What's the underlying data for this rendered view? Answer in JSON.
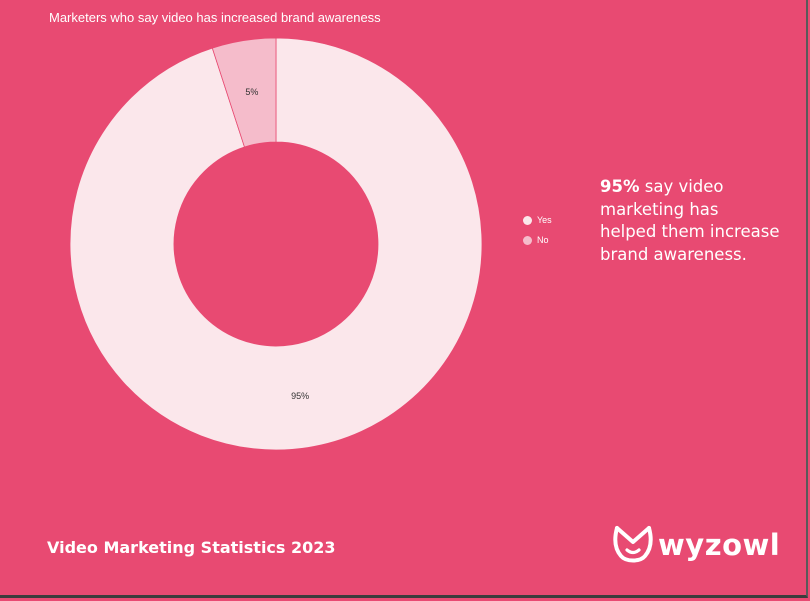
{
  "chart_data": {
    "type": "pie",
    "title": "Marketers who say video has increased brand awareness",
    "categories": [
      "Yes",
      "No"
    ],
    "values": [
      95,
      5
    ],
    "slice_labels": [
      "95%",
      "5%"
    ],
    "colors": [
      "#fbe7eb",
      "#f5bccb"
    ],
    "donut": true,
    "legend_position": "right"
  },
  "callout": {
    "highlight": "95%",
    "text": " say video marketing has helped them increase brand awareness."
  },
  "footer": {
    "title": "Video Marketing Statistics 2023"
  },
  "brand": {
    "name": "wyzowl",
    "icon": "wyzowl-owl-logo"
  },
  "colors": {
    "background": "#e84a72",
    "text": "#ffffff"
  }
}
